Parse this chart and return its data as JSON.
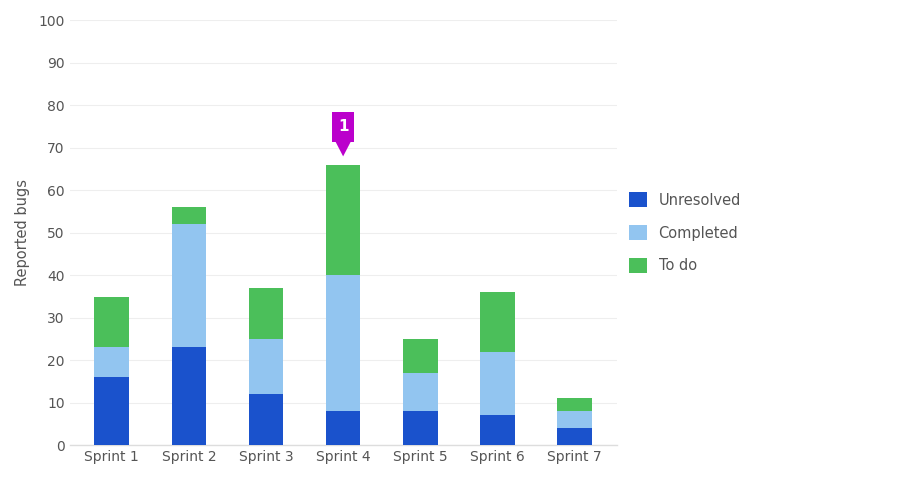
{
  "categories": [
    "Sprint 1",
    "Sprint 2",
    "Sprint 3",
    "Sprint 4",
    "Sprint 5",
    "Sprint 6",
    "Sprint 7"
  ],
  "unresolved": [
    16,
    23,
    12,
    8,
    8,
    7,
    4
  ],
  "completed": [
    7,
    29,
    13,
    32,
    9,
    15,
    4
  ],
  "todo": [
    12,
    4,
    12,
    26,
    8,
    14,
    3
  ],
  "color_unresolved": "#1a52cc",
  "color_completed": "#92c5f0",
  "color_todo": "#4bbf5a",
  "color_annotation_bg": "#bb00cc",
  "color_annotation_text": "#ffffff",
  "ylabel": "Reported bugs",
  "ylim": [
    0,
    100
  ],
  "yticks": [
    0,
    10,
    20,
    30,
    40,
    50,
    60,
    70,
    80,
    90,
    100
  ],
  "legend_labels": [
    "Unresolved",
    "Completed",
    "To do"
  ],
  "annotation_sprint_index": 3,
  "annotation_text": "1",
  "background_color": "#ffffff",
  "bar_width": 0.45
}
